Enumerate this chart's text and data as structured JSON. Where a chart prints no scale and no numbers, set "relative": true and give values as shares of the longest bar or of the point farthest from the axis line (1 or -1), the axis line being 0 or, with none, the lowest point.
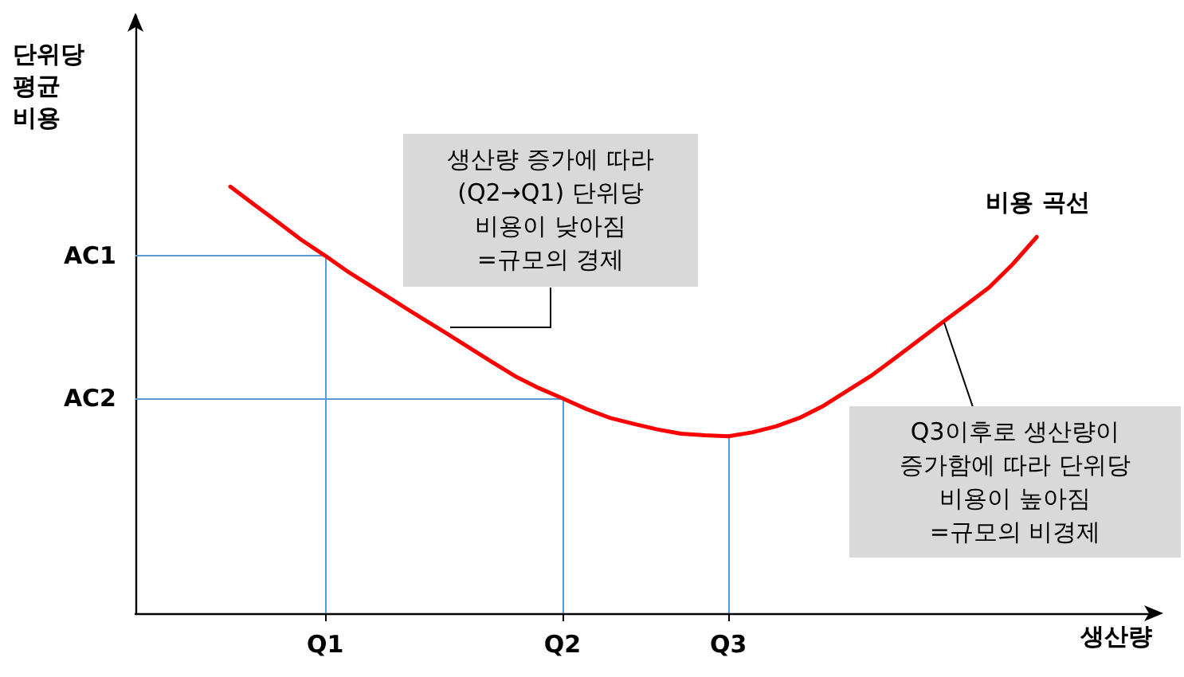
{
  "chart_data": {
    "type": "line",
    "xlabel": "생산량",
    "ylabel": "단위당\n평균\n비용",
    "relative": true,
    "categories": [
      null,
      null,
      null,
      null,
      null,
      null,
      null,
      null,
      "Q1",
      null,
      null,
      null,
      null,
      null,
      null,
      null,
      null,
      null,
      "Q2",
      null,
      null,
      null,
      null,
      null,
      null,
      "Q3",
      null,
      null,
      null,
      null,
      null,
      null,
      null,
      null,
      null,
      null,
      null,
      null,
      null,
      null,
      null,
      null,
      null,
      null
    ],
    "series": [
      {
        "name": "비용 곡선",
        "color": "#ff0000",
        "values": [
          null,
          null,
          null,
          null,
          1,
          0.958,
          0.917,
          0.875,
          0.838,
          0.799,
          0.764,
          0.729,
          0.694,
          0.66,
          0.625,
          0.59,
          0.556,
          0.528,
          0.504,
          0.479,
          0.458,
          0.444,
          0.431,
          0.421,
          0.417,
          0.415,
          0.424,
          0.438,
          0.458,
          0.486,
          0.521,
          0.556,
          0.597,
          0.639,
          0.681,
          0.722,
          0.764,
          0.819,
          0.882,
          null,
          null,
          null,
          null,
          null
        ]
      }
    ],
    "ref_lines": [
      {
        "axis": "y",
        "value": 0.838,
        "label": "AC1",
        "color": "#5b9bd5"
      },
      {
        "axis": "y",
        "value": 0.504,
        "label": "AC2",
        "color": "#5b9bd5"
      },
      {
        "axis": "x",
        "value": "Q1",
        "color": "#5b9bd5"
      },
      {
        "axis": "x",
        "value": "Q2",
        "color": "#5b9bd5"
      },
      {
        "axis": "x",
        "value": "Q3",
        "color": "#5b9bd5"
      }
    ],
    "annotations": [
      "생산량 증가에 따라\n(Q2→Q1) 단위당\n비용이 낮아짐\n=규모의 경제",
      "Q3이후로 생산량이\n증가함에 따라 단위당\n비용이 높아짐\n=규모의 비경제"
    ],
    "grid": false,
    "legend": false,
    "marker": "none",
    "line_style": "solid"
  }
}
